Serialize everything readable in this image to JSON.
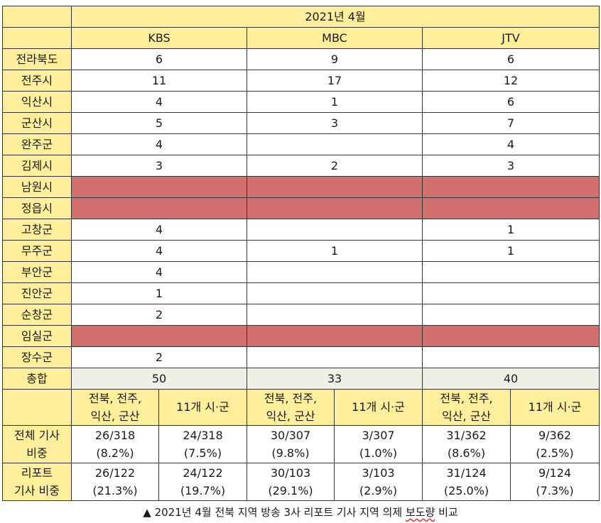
{
  "header": {
    "period": "2021년 4월",
    "stations": [
      "KBS",
      "MBC",
      "JTV"
    ]
  },
  "rows": [
    {
      "region": "전라북도",
      "kbs": "6",
      "mbc": "9",
      "jtv": "6",
      "blank": false
    },
    {
      "region": "전주시",
      "kbs": "11",
      "mbc": "17",
      "jtv": "12",
      "blank": false
    },
    {
      "region": "익산시",
      "kbs": "4",
      "mbc": "1",
      "jtv": "6",
      "blank": false
    },
    {
      "region": "군산시",
      "kbs": "5",
      "mbc": "3",
      "jtv": "7",
      "blank": false
    },
    {
      "region": "완주군",
      "kbs": "4",
      "mbc": "",
      "jtv": "4",
      "blank": false
    },
    {
      "region": "김제시",
      "kbs": "3",
      "mbc": "2",
      "jtv": "3",
      "blank": false
    },
    {
      "region": "남원시",
      "kbs": "",
      "mbc": "",
      "jtv": "",
      "blank": true
    },
    {
      "region": "정읍시",
      "kbs": "",
      "mbc": "",
      "jtv": "",
      "blank": true
    },
    {
      "region": "고창군",
      "kbs": "4",
      "mbc": "",
      "jtv": "1",
      "blank": false
    },
    {
      "region": "무주군",
      "kbs": "4",
      "mbc": "1",
      "jtv": "1",
      "blank": false
    },
    {
      "region": "부안군",
      "kbs": "4",
      "mbc": "",
      "jtv": "",
      "blank": false
    },
    {
      "region": "진안군",
      "kbs": "1",
      "mbc": "",
      "jtv": "",
      "blank": false
    },
    {
      "region": "순창군",
      "kbs": "2",
      "mbc": "",
      "jtv": "",
      "blank": false
    },
    {
      "region": "임실군",
      "kbs": "",
      "mbc": "",
      "jtv": "",
      "blank": true
    },
    {
      "region": "장수군",
      "kbs": "2",
      "mbc": "",
      "jtv": "",
      "blank": false
    }
  ],
  "total": {
    "label": "총합",
    "kbs": "50",
    "mbc": "33",
    "jtv": "40"
  },
  "subheaders": {
    "group_a_line1": "전북, 전주,",
    "group_a_line2": "익산, 군산",
    "group_b": "11개 시·군"
  },
  "share_all": {
    "label_line1": "전체 기사",
    "label_line2": "비중",
    "cells": [
      {
        "count": "26/318",
        "pct": "(8.2%)"
      },
      {
        "count": "24/318",
        "pct": "(7.5%)"
      },
      {
        "count": "30/307",
        "pct": "(9.8%)"
      },
      {
        "count": "3/307",
        "pct": "(1.0%)"
      },
      {
        "count": "31/362",
        "pct": "(8.6%)"
      },
      {
        "count": "9/362",
        "pct": "(2.5%)"
      }
    ]
  },
  "share_report": {
    "label_line1": "리포트",
    "label_line2": "기사 비중",
    "cells": [
      {
        "count": "26/122",
        "pct": "(21.3%)"
      },
      {
        "count": "24/122",
        "pct": "(19.7%)"
      },
      {
        "count": "30/103",
        "pct": "(29.1%)"
      },
      {
        "count": "3/103",
        "pct": "(2.9%)"
      },
      {
        "count": "31/124",
        "pct": "(25.0%)"
      },
      {
        "count": "9/124",
        "pct": "(7.3%)"
      }
    ]
  },
  "caption": {
    "text": "▲ 2021년 4월 전북 지역 방송 3사 리포트 기사 지역 의제 ",
    "underlined": "보도량",
    "tail": " 비교"
  },
  "colors": {
    "header_yellow": "#ffef9c",
    "blank_red": "#d27070",
    "total_gray": "#f0efe7"
  }
}
